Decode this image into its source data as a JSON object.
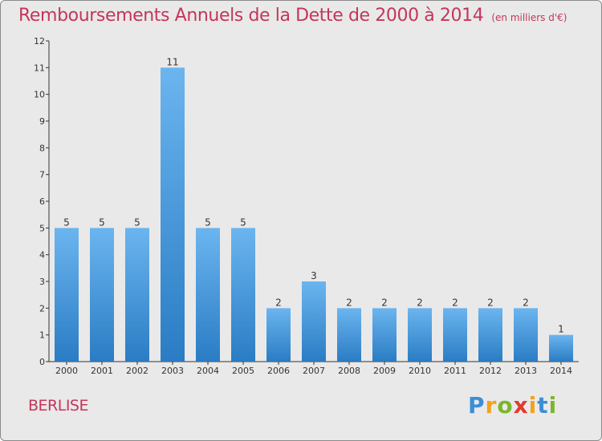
{
  "header": {
    "title": "Remboursements Annuels de la Dette de 2000 à 2014",
    "subtitle": "(en milliers d'€)"
  },
  "commune": "BERLISE",
  "logo": {
    "text": "Proxiti",
    "letters": [
      {
        "char": "P",
        "color": "#3a8fd6"
      },
      {
        "char": "r",
        "color": "#f2a21b"
      },
      {
        "char": "o",
        "color": "#7ab62b"
      },
      {
        "char": "x",
        "color": "#e23b2c"
      },
      {
        "char": "i",
        "color": "#f2a21b"
      },
      {
        "char": "t",
        "color": "#3a8fd6"
      },
      {
        "char": "i",
        "color": "#7ab62b"
      }
    ]
  },
  "colors": {
    "bar_light": "#6bb5ef",
    "bar_dark": "#2a7cc4",
    "accent": "#c4365a"
  },
  "chart_data": {
    "type": "bar",
    "title": "Remboursements Annuels de la Dette de 2000 à 2014",
    "subtitle": "(en milliers d'€)",
    "xlabel": "",
    "ylabel": "",
    "categories": [
      "2000",
      "2001",
      "2002",
      "2003",
      "2004",
      "2005",
      "2006",
      "2007",
      "2008",
      "2009",
      "2010",
      "2011",
      "2012",
      "2013",
      "2014"
    ],
    "values": [
      5,
      5,
      5,
      11,
      5,
      5,
      2,
      3,
      2,
      2,
      2,
      2,
      2,
      2,
      1
    ],
    "ylim": [
      0,
      12
    ],
    "yticks": [
      0,
      1,
      2,
      3,
      4,
      5,
      6,
      7,
      8,
      9,
      10,
      11,
      12
    ],
    "grid": false,
    "legend": "none"
  }
}
